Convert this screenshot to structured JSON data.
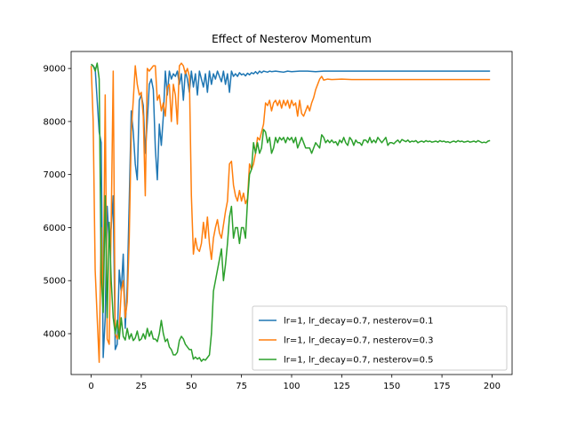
{
  "chart_data": {
    "type": "line",
    "title": "Effect of Nesterov Momentum",
    "xlabel": "",
    "ylabel": "",
    "xlim": [
      -10,
      210
    ],
    "ylim": [
      3230,
      9320
    ],
    "xticks": [
      0,
      25,
      50,
      75,
      100,
      125,
      150,
      175,
      200
    ],
    "yticks": [
      4000,
      5000,
      6000,
      7000,
      8000,
      9000
    ],
    "grid": false,
    "legend_position": "lower-right",
    "series": [
      {
        "name": "lr=1, lr_decay=0.7, nesterov=0.1",
        "color": "#1f77b4",
        "x": [
          0,
          2,
          4,
          5,
          6,
          7,
          8,
          9,
          10,
          11,
          12,
          13,
          14,
          15,
          16,
          17,
          18,
          19,
          20,
          21,
          22,
          23,
          24,
          25,
          26,
          27,
          28,
          29,
          30,
          31,
          32,
          33,
          34,
          35,
          36,
          37,
          38,
          39,
          40,
          41,
          42,
          43,
          44,
          45,
          46,
          47,
          48,
          49,
          50,
          51,
          52,
          53,
          54,
          55,
          56,
          57,
          58,
          59,
          60,
          61,
          62,
          63,
          64,
          65,
          66,
          67,
          68,
          69,
          70,
          71,
          72,
          73,
          74,
          75,
          76,
          77,
          78,
          79,
          80,
          81,
          82,
          83,
          84,
          85,
          86,
          87,
          88,
          89,
          90,
          92,
          94,
          96,
          98,
          100,
          104,
          108,
          112,
          116,
          120,
          130,
          140,
          150,
          160,
          170,
          180,
          190,
          199
        ],
        "y": [
          9080,
          9000,
          7800,
          7600,
          3550,
          4300,
          6400,
          5700,
          6000,
          6600,
          3700,
          3800,
          5200,
          4800,
          5500,
          4100,
          4900,
          6500,
          8200,
          7800,
          7200,
          6900,
          8400,
          8500,
          8300,
          7400,
          8000,
          8700,
          8800,
          8600,
          7500,
          6900,
          7950,
          7550,
          8100,
          8950,
          8500,
          8950,
          8800,
          8900,
          8850,
          8950,
          8700,
          8900,
          8400,
          8950,
          8800,
          8550,
          8950,
          8650,
          8900,
          8500,
          8950,
          8800,
          8650,
          8900,
          8550,
          8950,
          8700,
          8900,
          8800,
          8950,
          8850,
          8750,
          8950,
          8700,
          8900,
          8550,
          8950,
          8850,
          8900,
          8850,
          8920,
          8880,
          8900,
          8860,
          8910,
          8880,
          8920,
          8900,
          8940,
          8900,
          8950,
          8920,
          8950,
          8940,
          8930,
          8950,
          8940,
          8950,
          8940,
          8930,
          8950,
          8940,
          8950,
          8950,
          8940,
          8950,
          8950,
          8950,
          8950,
          8950,
          8950,
          8950,
          8950,
          8950,
          8950
        ]
      },
      {
        "name": "lr=1, lr_decay=0.7, nesterov=0.3",
        "color": "#ff7f0e",
        "x": [
          0,
          1,
          2,
          3,
          4,
          5,
          6,
          7,
          8,
          9,
          10,
          11,
          12,
          13,
          14,
          15,
          16,
          17,
          18,
          19,
          20,
          21,
          22,
          23,
          24,
          25,
          26,
          27,
          28,
          29,
          30,
          31,
          32,
          33,
          34,
          35,
          36,
          37,
          38,
          39,
          40,
          41,
          42,
          43,
          44,
          45,
          46,
          47,
          48,
          49,
          50,
          51,
          52,
          53,
          54,
          55,
          56,
          57,
          58,
          59,
          60,
          61,
          62,
          63,
          64,
          65,
          66,
          67,
          68,
          69,
          70,
          71,
          72,
          73,
          74,
          75,
          76,
          77,
          78,
          79,
          80,
          81,
          82,
          83,
          84,
          85,
          86,
          87,
          88,
          89,
          90,
          91,
          92,
          93,
          94,
          95,
          96,
          97,
          98,
          99,
          100,
          101,
          102,
          103,
          104,
          105,
          106,
          107,
          108,
          109,
          110,
          111,
          112,
          113,
          114,
          115,
          116,
          118,
          120,
          125,
          130,
          140,
          150,
          160,
          170,
          180,
          190,
          199
        ],
        "y": [
          9050,
          8000,
          5200,
          4300,
          3460,
          6000,
          4500,
          8500,
          3900,
          3800,
          6100,
          8950,
          4000,
          3900,
          4100,
          4800,
          5000,
          4300,
          4600,
          5800,
          7800,
          8400,
          9050,
          8700,
          8500,
          8550,
          8100,
          6600,
          9000,
          8950,
          9000,
          9050,
          9050,
          8400,
          8500,
          8200,
          8350,
          8100,
          8650,
          8700,
          8000,
          8700,
          8500,
          7950,
          9050,
          9100,
          9050,
          8900,
          9000,
          8850,
          6600,
          5500,
          5800,
          5600,
          5550,
          5700,
          6100,
          5800,
          6200,
          5700,
          5400,
          5800,
          6000,
          6150,
          5900,
          5800,
          6050,
          6300,
          6500,
          7200,
          7250,
          6800,
          6600,
          6500,
          6700,
          6500,
          6650,
          6450,
          6550,
          7200,
          7100,
          7200,
          7400,
          7700,
          7650,
          7800,
          7950,
          8350,
          8300,
          8400,
          8200,
          8350,
          8400,
          8300,
          8400,
          8250,
          8400,
          8300,
          8400,
          8250,
          8400,
          8300,
          8350,
          8100,
          8400,
          8150,
          8100,
          8200,
          8300,
          8200,
          8350,
          8450,
          8600,
          8700,
          8800,
          8850,
          8780,
          8800,
          8790,
          8800,
          8790,
          8790,
          8790,
          8790,
          8790,
          8790,
          8790,
          8790
        ]
      },
      {
        "name": "lr=1, lr_decay=0.7, nesterov=0.5",
        "color": "#2ca02c",
        "x": [
          0,
          1,
          2,
          3,
          4,
          5,
          6,
          7,
          8,
          9,
          10,
          11,
          12,
          13,
          14,
          15,
          16,
          17,
          18,
          19,
          20,
          21,
          22,
          23,
          24,
          25,
          26,
          27,
          28,
          29,
          30,
          31,
          32,
          33,
          34,
          35,
          36,
          37,
          38,
          39,
          40,
          41,
          42,
          43,
          44,
          45,
          46,
          47,
          48,
          49,
          50,
          51,
          52,
          53,
          54,
          55,
          56,
          57,
          58,
          59,
          60,
          61,
          62,
          63,
          64,
          65,
          66,
          67,
          68,
          69,
          70,
          71,
          72,
          73,
          74,
          75,
          76,
          77,
          78,
          79,
          80,
          81,
          82,
          83,
          84,
          85,
          86,
          87,
          88,
          89,
          90,
          91,
          92,
          93,
          94,
          95,
          96,
          97,
          98,
          99,
          100,
          101,
          102,
          103,
          104,
          105,
          106,
          107,
          108,
          109,
          110,
          111,
          112,
          113,
          114,
          115,
          116,
          117,
          118,
          119,
          120,
          121,
          122,
          123,
          124,
          125,
          126,
          127,
          128,
          129,
          130,
          131,
          132,
          133,
          134,
          135,
          136,
          137,
          138,
          139,
          140,
          141,
          142,
          143,
          144,
          145,
          146,
          147,
          148,
          149,
          150,
          151,
          152,
          153,
          154,
          155,
          156,
          157,
          158,
          159,
          160,
          161,
          162,
          163,
          164,
          165,
          166,
          167,
          168,
          169,
          170,
          171,
          172,
          173,
          174,
          175,
          176,
          177,
          178,
          179,
          180,
          181,
          182,
          183,
          184,
          185,
          186,
          187,
          188,
          189,
          190,
          191,
          192,
          193,
          194,
          195,
          196,
          197,
          198,
          199
        ],
        "y": [
          9080,
          9050,
          8950,
          9100,
          8800,
          5100,
          4400,
          6600,
          4300,
          6100,
          5000,
          4300,
          4000,
          4250,
          3900,
          4300,
          3950,
          3880,
          4100,
          3900,
          4000,
          3870,
          3920,
          4050,
          3870,
          3900,
          4000,
          3900,
          4100,
          3950,
          4050,
          3900,
          3900,
          3850,
          4000,
          4250,
          4000,
          3850,
          3900,
          3750,
          3700,
          3600,
          3600,
          3650,
          3870,
          3950,
          3900,
          3800,
          3750,
          3700,
          3700,
          3520,
          3560,
          3520,
          3550,
          3480,
          3520,
          3500,
          3550,
          3600,
          4000,
          4800,
          5000,
          5200,
          5400,
          5600,
          5000,
          5300,
          5700,
          6200,
          6400,
          5800,
          6000,
          6000,
          5700,
          6000,
          6000,
          5800,
          6500,
          7000,
          7100,
          7600,
          7400,
          7600,
          7400,
          7500,
          7850,
          7800,
          7600,
          7700,
          7400,
          7500,
          7700,
          7600,
          7700,
          7650,
          7700,
          7600,
          7700,
          7650,
          7700,
          7600,
          7700,
          7500,
          7600,
          7700,
          7600,
          7500,
          7500,
          7500,
          7400,
          7500,
          7600,
          7550,
          7500,
          7750,
          7700,
          7600,
          7650,
          7600,
          7650,
          7600,
          7620,
          7550,
          7650,
          7600,
          7700,
          7600,
          7550,
          7700,
          7650,
          7550,
          7650,
          7600,
          7600,
          7550,
          7650,
          7650,
          7600,
          7700,
          7600,
          7650,
          7600,
          7700,
          7650,
          7600,
          7650,
          7700,
          7550,
          7600,
          7600,
          7580,
          7620,
          7650,
          7600,
          7660,
          7640,
          7620,
          7650,
          7610,
          7630,
          7620,
          7640,
          7600,
          7620,
          7630,
          7610,
          7640,
          7620,
          7630,
          7610,
          7620,
          7630,
          7610,
          7640,
          7620,
          7630,
          7610,
          7620,
          7600,
          7620,
          7630,
          7610,
          7640,
          7620,
          7630,
          7610,
          7620,
          7630,
          7610,
          7620,
          7630,
          7610,
          7640,
          7620,
          7600,
          7610,
          7600,
          7630,
          7640
        ]
      }
    ]
  }
}
